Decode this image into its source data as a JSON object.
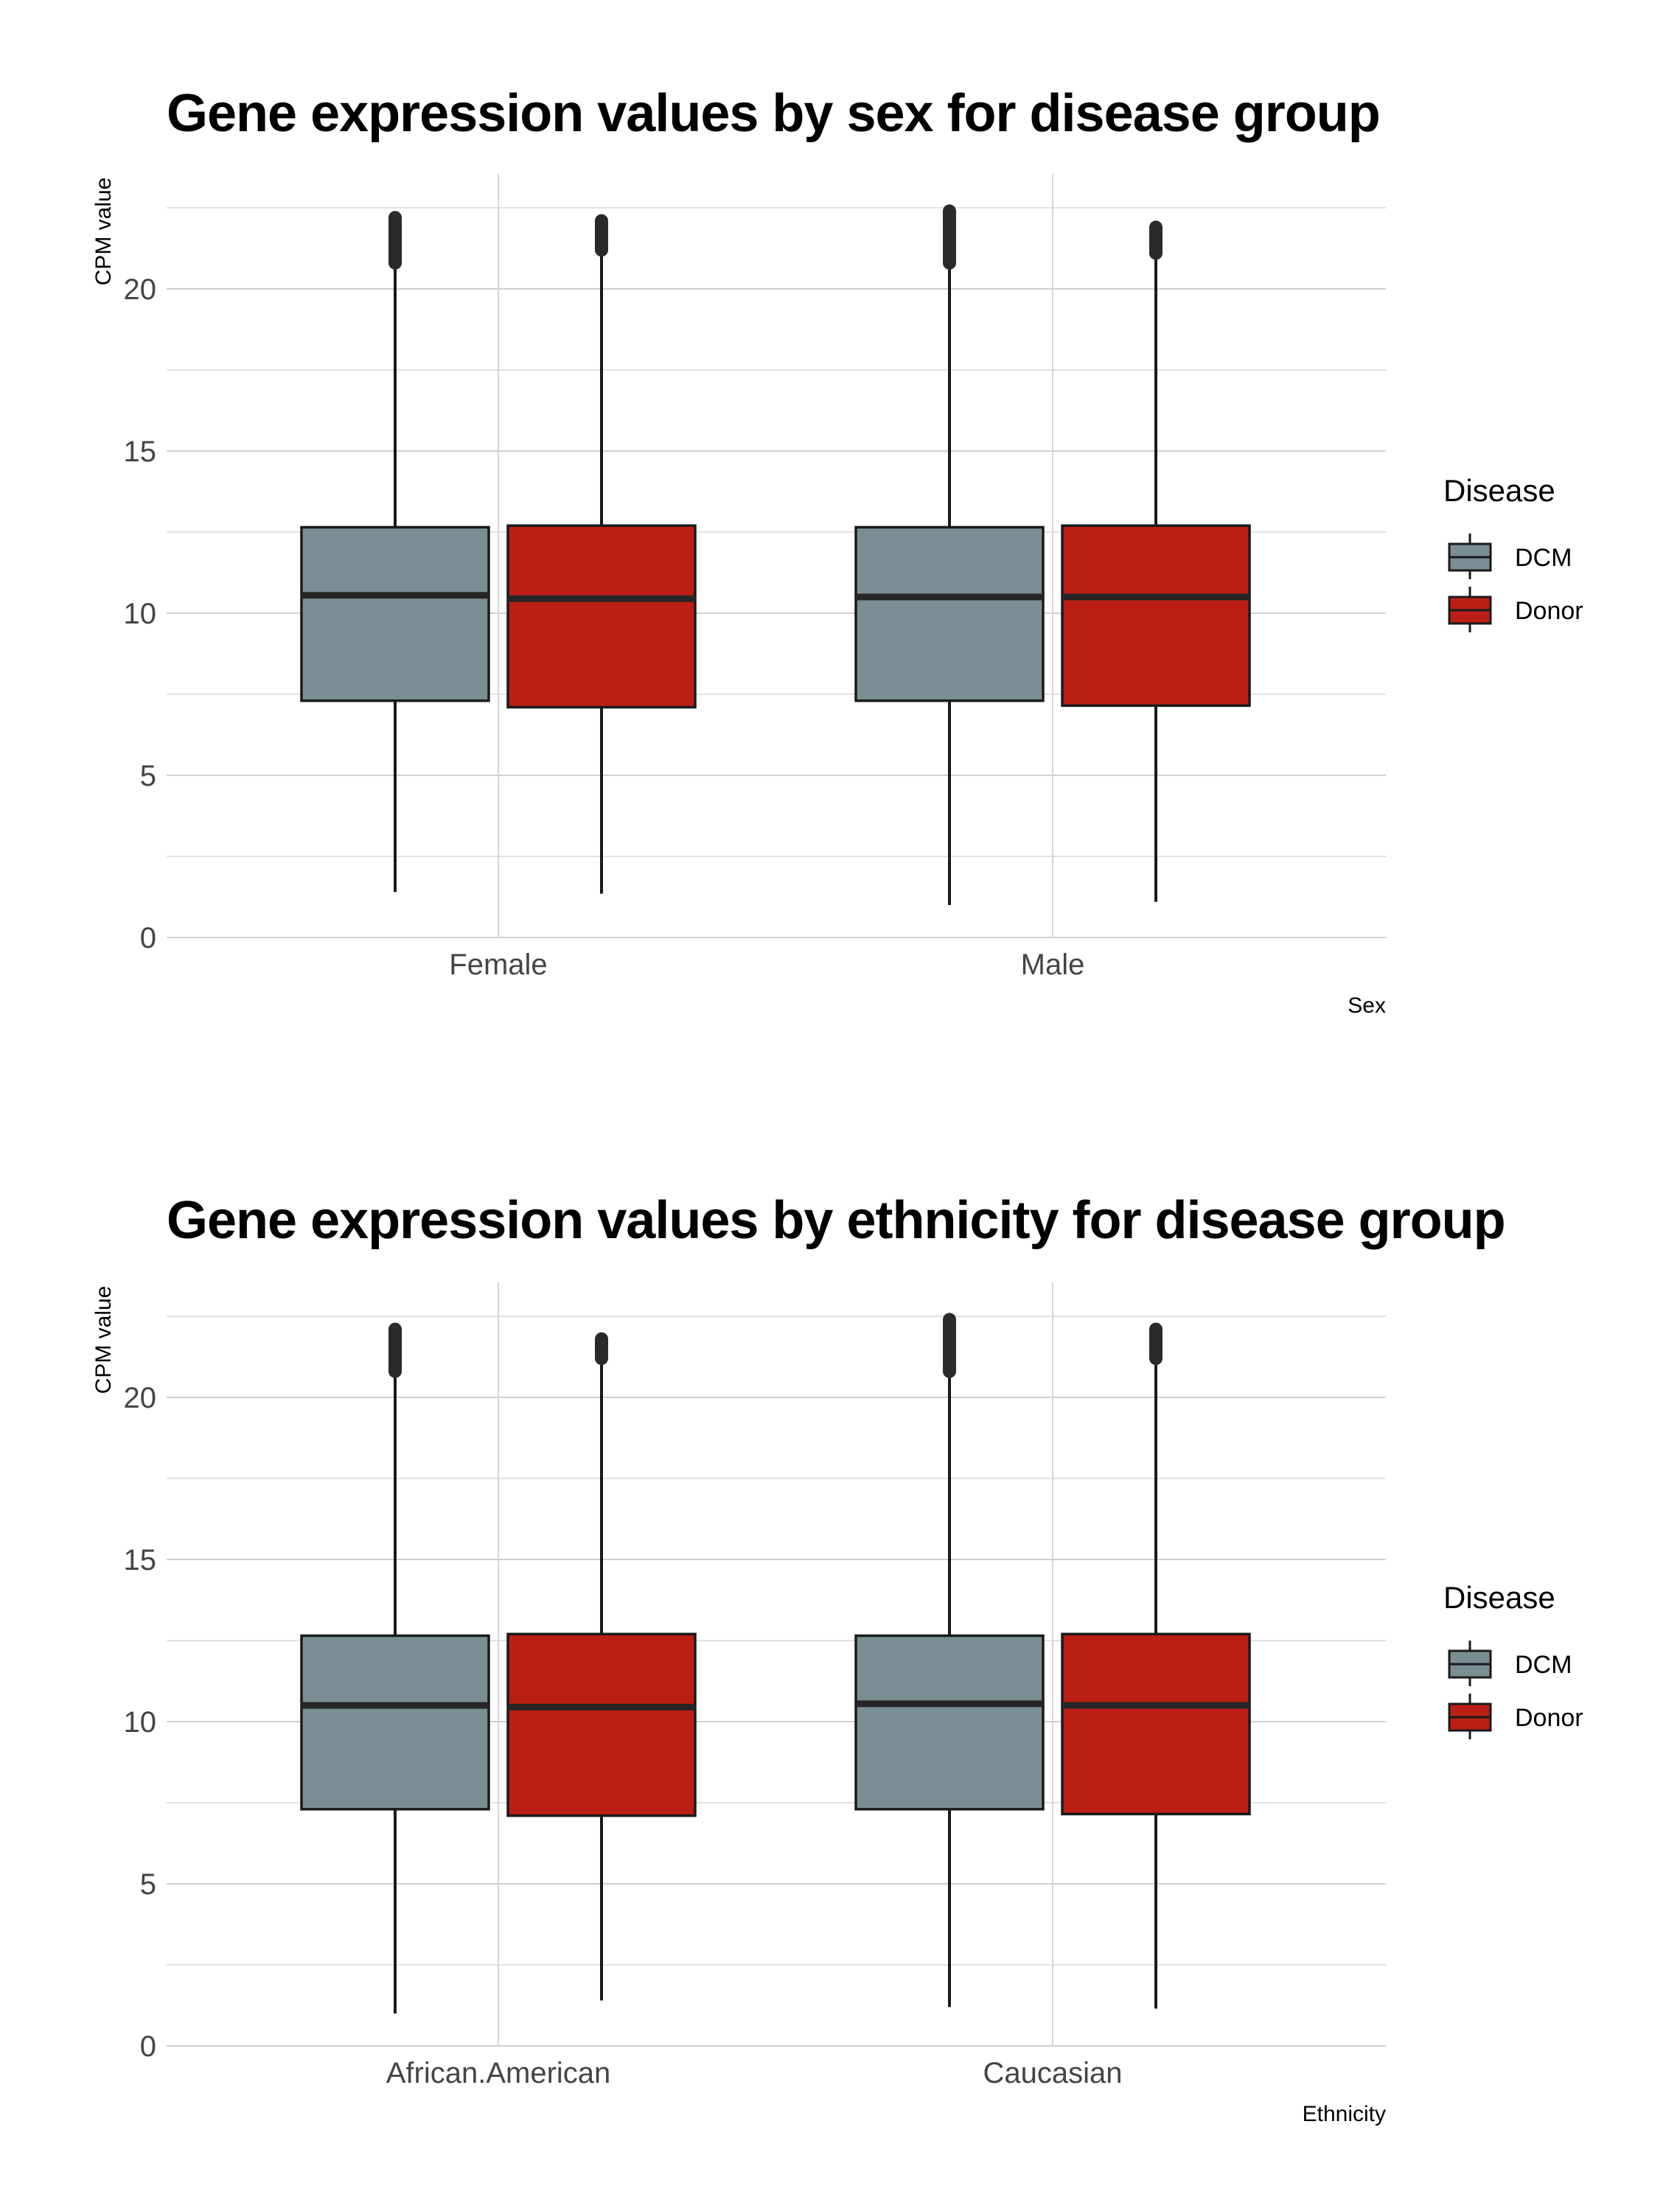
{
  "chart_data": [
    {
      "type": "box",
      "title": "Gene expression values by sex for disease group",
      "xlabel": "Sex",
      "ylabel": "CPM value",
      "ylim": [
        0,
        23.5
      ],
      "yticks": [
        0,
        5,
        10,
        15,
        20
      ],
      "categories": [
        "Female",
        "Male"
      ],
      "grid": true,
      "legend": {
        "title": "Disease",
        "placement": "right"
      },
      "series": [
        {
          "name": "DCM",
          "color": "#7a8e94",
          "boxes": [
            {
              "min": 1.4,
              "q1": 7.3,
              "median": 10.55,
              "q3": 12.65,
              "max": 20.8,
              "outlier_range": [
                20.8,
                22.2
              ]
            },
            {
              "min": 1.0,
              "q1": 7.3,
              "median": 10.5,
              "q3": 12.65,
              "max": 20.8,
              "outlier_range": [
                20.8,
                22.4
              ]
            }
          ]
        },
        {
          "name": "Donor",
          "color": "#bb1e14",
          "boxes": [
            {
              "min": 1.35,
              "q1": 7.1,
              "median": 10.45,
              "q3": 12.7,
              "max": 21.1,
              "outlier_range": [
                21.2,
                22.1
              ]
            },
            {
              "min": 1.1,
              "q1": 7.15,
              "median": 10.5,
              "q3": 12.7,
              "max": 21.1,
              "outlier_range": [
                21.1,
                21.9
              ]
            }
          ]
        }
      ]
    },
    {
      "type": "box",
      "title": "Gene expression values by ethnicity for disease group",
      "xlabel": "Ethnicity",
      "ylabel": "CPM value",
      "ylim": [
        0,
        23.5
      ],
      "yticks": [
        0,
        5,
        10,
        15,
        20
      ],
      "categories": [
        "African.American",
        "Caucasian"
      ],
      "grid": true,
      "legend": {
        "title": "Disease",
        "placement": "right"
      },
      "series": [
        {
          "name": "DCM",
          "color": "#7a8e94",
          "boxes": [
            {
              "min": 1.0,
              "q1": 7.3,
              "median": 10.5,
              "q3": 12.65,
              "max": 20.8,
              "outlier_range": [
                20.8,
                22.1
              ]
            },
            {
              "min": 1.2,
              "q1": 7.3,
              "median": 10.55,
              "q3": 12.65,
              "max": 20.8,
              "outlier_range": [
                20.8,
                22.4
              ]
            }
          ]
        },
        {
          "name": "Donor",
          "color": "#bb1e14",
          "boxes": [
            {
              "min": 1.4,
              "q1": 7.1,
              "median": 10.45,
              "q3": 12.7,
              "max": 21.1,
              "outlier_range": [
                21.2,
                21.8
              ]
            },
            {
              "min": 1.15,
              "q1": 7.15,
              "median": 10.5,
              "q3": 12.7,
              "max": 21.1,
              "outlier_range": [
                21.2,
                22.1
              ]
            }
          ]
        }
      ]
    }
  ]
}
